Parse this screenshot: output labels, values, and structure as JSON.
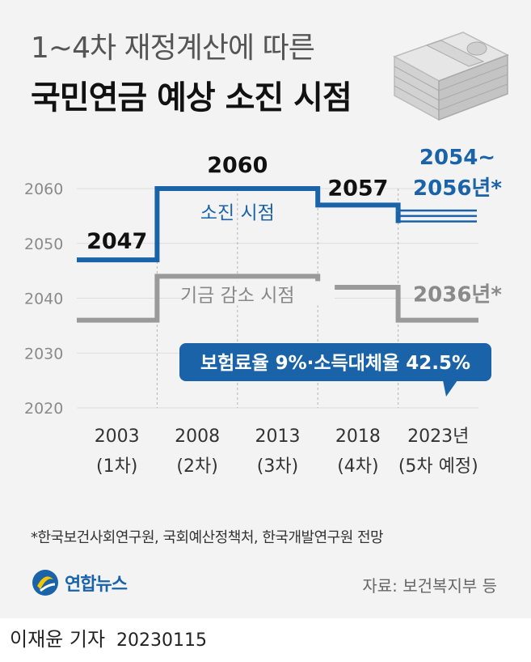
{
  "header": {
    "title_line1": "1~4차 재정계산에 따른",
    "title_line2": "국민연금 예상 소진 시점"
  },
  "colors": {
    "depletion": "#1a63a8",
    "fund_decline": "#9a9a9a",
    "background": "#f3f3f3"
  },
  "chart_data": {
    "type": "line",
    "step": true,
    "ylim": [
      2020,
      2060
    ],
    "yticks": [
      "2020",
      "2030",
      "2040",
      "2050",
      "2060"
    ],
    "grid": true,
    "categories": [
      {
        "year": "2003",
        "round": "(1차)"
      },
      {
        "year": "2008",
        "round": "(2차)"
      },
      {
        "year": "2013",
        "round": "(3차)"
      },
      {
        "year": "2018",
        "round": "(4차)"
      },
      {
        "year": "2023년",
        "round": "(5차 예정)"
      }
    ],
    "series": [
      {
        "name": "소진 시점",
        "key": "depletion",
        "values": [
          2047,
          2060,
          2060,
          2057,
          2055
        ],
        "range_last": [
          2054,
          2056
        ],
        "point_labels": [
          "2047",
          "2060",
          "",
          "2057",
          "2054~\n2056년*"
        ]
      },
      {
        "name": "기금 감소 시점",
        "key": "fund_decline",
        "values": [
          2036,
          2044,
          2044,
          2042,
          2036
        ],
        "point_labels": [
          "",
          "",
          "",
          "",
          "2036년*"
        ]
      }
    ],
    "callout": "보험료율 9%·소득대체율 42.5%"
  },
  "footer": {
    "footnote": "*한국보건사회연구원, 국회예산정책처, 한국개발연구원 전망",
    "logo": "연합뉴스",
    "source": "자료: 보건복지부 등",
    "reporter": "이재윤 기자",
    "date": "20230115"
  }
}
